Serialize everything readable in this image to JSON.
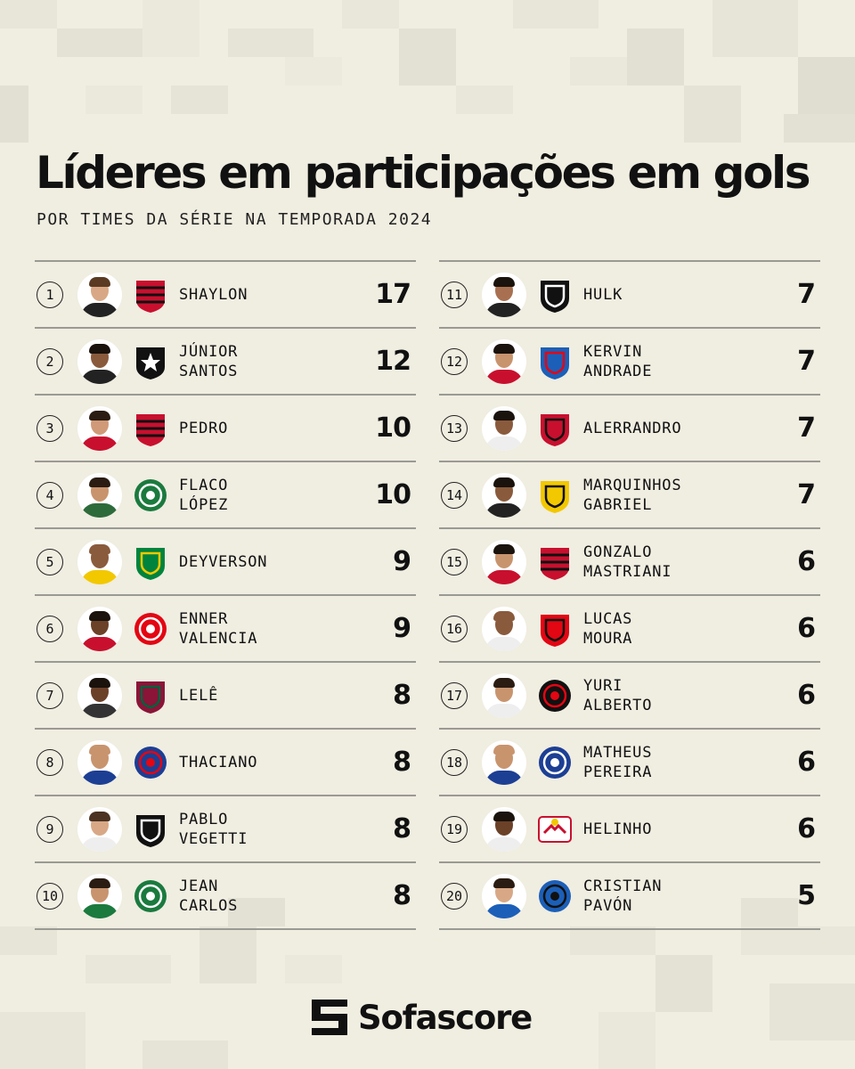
{
  "title": "Líderes em participações em gols",
  "subtitle": "POR TIMES DA SÉRIE NA TEMPORADA 2024",
  "footer": {
    "brand": "Sofascore"
  },
  "colors": {
    "background": "#f0ede1",
    "divider": "#9a9a94",
    "text": "#111111"
  },
  "players": [
    {
      "rank": "1",
      "name_lines": [
        "SHAYLON"
      ],
      "goals": "17",
      "team_icon": "atletico-go-crest-icon",
      "skin": "#d8a886",
      "hair": "#5a3a22",
      "shirt": "#222222",
      "crest": "#c8102e",
      "crest2": "#111111",
      "crest_shape": "stripe"
    },
    {
      "rank": "2",
      "name_lines": [
        "JÚNIOR",
        "SANTOS"
      ],
      "goals": "12",
      "team_icon": "botafogo-crest-icon",
      "skin": "#8a5a3c",
      "hair": "#1a120c",
      "shirt": "#222222",
      "crest": "#111111",
      "crest2": "#ffffff",
      "crest_shape": "star"
    },
    {
      "rank": "3",
      "name_lines": [
        "PEDRO"
      ],
      "goals": "10",
      "team_icon": "flamengo-crest-icon",
      "skin": "#d09a78",
      "hair": "#2a1c12",
      "shirt": "#c8102e",
      "crest": "#c8102e",
      "crest2": "#111111",
      "crest_shape": "stripe"
    },
    {
      "rank": "4",
      "name_lines": [
        "FLACO",
        "LÓPEZ"
      ],
      "goals": "10",
      "team_icon": "palmeiras-crest-icon",
      "skin": "#c8946e",
      "hair": "#2a1c12",
      "shirt": "#2e6b3a",
      "crest": "#1b7a3e",
      "crest2": "#ffffff",
      "crest_shape": "circle"
    },
    {
      "rank": "5",
      "name_lines": [
        "DEYVERSON"
      ],
      "goals": "9",
      "team_icon": "cuiaba-crest-icon",
      "skin": "#8a5a3c",
      "hair": "#8a5a3c",
      "shirt": "#f2c800",
      "crest": "#00843d",
      "crest2": "#f2c800",
      "crest_shape": "shield"
    },
    {
      "rank": "6",
      "name_lines": [
        "ENNER",
        "VALENCIA"
      ],
      "goals": "9",
      "team_icon": "internacional-crest-icon",
      "skin": "#6b4128",
      "hair": "#1a120c",
      "shirt": "#c8102e",
      "crest": "#e30613",
      "crest2": "#ffffff",
      "crest_shape": "circle"
    },
    {
      "rank": "7",
      "name_lines": [
        "LELÊ"
      ],
      "goals": "8",
      "team_icon": "fluminense-crest-icon",
      "skin": "#6b4128",
      "hair": "#1a120c",
      "shirt": "#333333",
      "crest": "#8a1538",
      "crest2": "#00613c",
      "crest_shape": "shield"
    },
    {
      "rank": "8",
      "name_lines": [
        "THACIANO"
      ],
      "goals": "8",
      "team_icon": "bahia-crest-icon",
      "skin": "#c8946e",
      "hair": "#c8946e",
      "shirt": "#1c3f94",
      "crest": "#1c3f94",
      "crest2": "#e30613",
      "crest_shape": "circle"
    },
    {
      "rank": "9",
      "name_lines": [
        "PABLO",
        "VEGETTI"
      ],
      "goals": "8",
      "team_icon": "vasco-crest-icon",
      "skin": "#d8a886",
      "hair": "#4a3322",
      "shirt": "#eeeeee",
      "crest": "#111111",
      "crest2": "#ffffff",
      "crest_shape": "shield"
    },
    {
      "rank": "10",
      "name_lines": [
        "JEAN",
        "CARLOS"
      ],
      "goals": "8",
      "team_icon": "juventude-crest-icon",
      "skin": "#c8946e",
      "hair": "#2a1c12",
      "shirt": "#1b7a3e",
      "crest": "#1b7a3e",
      "crest2": "#ffffff",
      "crest_shape": "circle"
    },
    {
      "rank": "11",
      "name_lines": [
        "HULK"
      ],
      "goals": "7",
      "team_icon": "atletico-mg-crest-icon",
      "skin": "#a87050",
      "hair": "#1a120c",
      "shirt": "#222222",
      "crest": "#111111",
      "crest2": "#ffffff",
      "crest_shape": "shield"
    },
    {
      "rank": "12",
      "name_lines": [
        "KERVIN",
        "ANDRADE"
      ],
      "goals": "7",
      "team_icon": "fortaleza-crest-icon",
      "skin": "#c8946e",
      "hair": "#1a120c",
      "shirt": "#c8102e",
      "crest": "#1c5fb8",
      "crest2": "#e30613",
      "crest_shape": "shield"
    },
    {
      "rank": "13",
      "name_lines": [
        "ALERRANDRO"
      ],
      "goals": "7",
      "team_icon": "vitoria-crest-icon",
      "skin": "#8a5a3c",
      "hair": "#1a120c",
      "shirt": "#eeeeee",
      "crest": "#c8102e",
      "crest2": "#111111",
      "crest_shape": "shield"
    },
    {
      "rank": "14",
      "name_lines": [
        "MARQUINHOS",
        "GABRIEL"
      ],
      "goals": "7",
      "team_icon": "criciuma-crest-icon",
      "skin": "#8a5a3c",
      "hair": "#1a120c",
      "shirt": "#222222",
      "crest": "#f2c800",
      "crest2": "#111111",
      "crest_shape": "shield"
    },
    {
      "rank": "15",
      "name_lines": [
        "GONZALO",
        "MASTRIANI"
      ],
      "goals": "6",
      "team_icon": "athletico-pr-crest-icon",
      "skin": "#c8946e",
      "hair": "#1a120c",
      "shirt": "#c8102e",
      "crest": "#c8102e",
      "crest2": "#111111",
      "crest_shape": "stripe"
    },
    {
      "rank": "16",
      "name_lines": [
        "LUCAS",
        "MOURA"
      ],
      "goals": "6",
      "team_icon": "sao-paulo-crest-icon",
      "skin": "#8a5a3c",
      "hair": "#8a5a3c",
      "shirt": "#eeeeee",
      "crest": "#e30613",
      "crest2": "#111111",
      "crest_shape": "shield"
    },
    {
      "rank": "17",
      "name_lines": [
        "YURI",
        "ALBERTO"
      ],
      "goals": "6",
      "team_icon": "corinthians-crest-icon",
      "skin": "#c8946e",
      "hair": "#2a1c12",
      "shirt": "#eeeeee",
      "crest": "#111111",
      "crest2": "#e30613",
      "crest_shape": "circle"
    },
    {
      "rank": "18",
      "name_lines": [
        "MATHEUS",
        "PEREIRA"
      ],
      "goals": "6",
      "team_icon": "cruzeiro-crest-icon",
      "skin": "#c8946e",
      "hair": "#c8946e",
      "shirt": "#1c3f94",
      "crest": "#1c3f94",
      "crest2": "#ffffff",
      "crest_shape": "circle"
    },
    {
      "rank": "19",
      "name_lines": [
        "HELINHO"
      ],
      "goals": "6",
      "team_icon": "red-bull-bragantino-crest-icon",
      "skin": "#6b4128",
      "hair": "#1a120c",
      "shirt": "#eeeeee",
      "crest": "#c8102e",
      "crest2": "#f2c800",
      "crest_shape": "bull"
    },
    {
      "rank": "20",
      "name_lines": [
        "CRISTIAN",
        "PAVÓN"
      ],
      "goals": "5",
      "team_icon": "gremio-crest-icon",
      "skin": "#d8a886",
      "hair": "#2a1c12",
      "shirt": "#1c5fb8",
      "crest": "#1c5fb8",
      "crest2": "#111111",
      "crest_shape": "circle"
    }
  ]
}
